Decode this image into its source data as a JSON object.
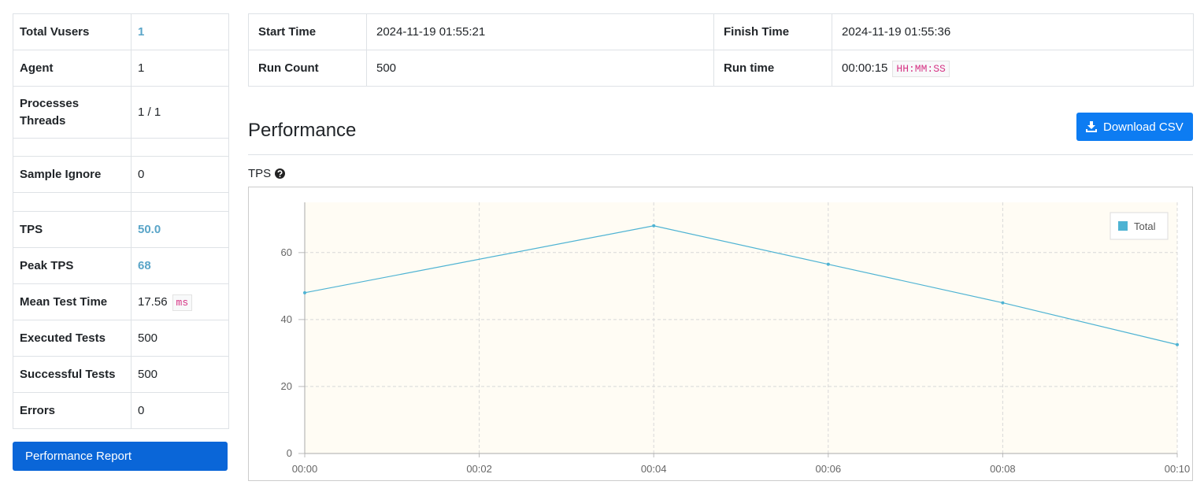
{
  "summary": {
    "rows": [
      [
        "Total Vusers",
        "1"
      ],
      [
        "Agent",
        "1"
      ],
      [
        "Processes Threads",
        "1 / 1"
      ],
      [
        "Sample Ignore",
        "0"
      ],
      [
        "TPS",
        "50.0"
      ],
      [
        "Peak TPS",
        "68"
      ],
      [
        "Mean Test Time",
        "17.56"
      ],
      [
        "Executed Tests",
        "500"
      ],
      [
        "Successful Tests",
        "500"
      ],
      [
        "Errors",
        "0"
      ]
    ],
    "mean_unit": "ms",
    "report_button": "Performance Report"
  },
  "run_info": {
    "rows": [
      [
        "Start Time",
        "2024-11-19 01:55:21",
        "Finish Time",
        "2024-11-19 01:55:36"
      ],
      [
        "Run Count",
        "500",
        "Run time",
        "00:00:15"
      ]
    ],
    "run_time_unit": "HH:MM:SS"
  },
  "section_title": "Performance",
  "download_button": "Download CSV",
  "chart_data": {
    "type": "line",
    "title": "TPS",
    "x": [
      0,
      4,
      6,
      8,
      10
    ],
    "xlim": [
      0,
      10
    ],
    "xticks": [
      {
        "value": 0,
        "label": "00:00"
      },
      {
        "value": 2,
        "label": "00:02"
      },
      {
        "value": 4,
        "label": "00:04"
      },
      {
        "value": 6,
        "label": "00:06"
      },
      {
        "value": 8,
        "label": "00:08"
      },
      {
        "value": 10,
        "label": "00:10"
      }
    ],
    "ylim": [
      0,
      75
    ],
    "yticks": [
      0,
      20,
      40,
      60
    ],
    "grid": true,
    "legend": "upper right",
    "series": [
      {
        "name": "Total",
        "color": "#4eb3d3",
        "values": [
          48,
          68,
          56.5,
          45,
          32.5
        ]
      }
    ]
  }
}
